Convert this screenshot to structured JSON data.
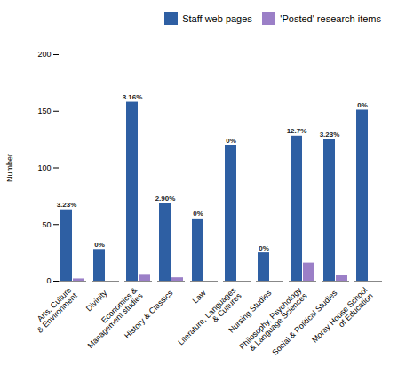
{
  "chart_data": {
    "type": "bar",
    "categories": [
      "Arts, Culture\n& Environment",
      "Divinity",
      "Economics &\nManagement studies",
      "History & Classics",
      "Law",
      "Literature, Languages\n& Cultures",
      "Nursing Studies",
      "Philosophy, Psychology\n& Language Sciences",
      "Social & Political Studies",
      "Moray House School\nof Education"
    ],
    "series": [
      {
        "name": "Staff web pages",
        "color": "#2E5FA3",
        "values": [
          63,
          28,
          158,
          69,
          55,
          120,
          25,
          128,
          125,
          151
        ],
        "labels": [
          "3.23%",
          "0%",
          "3.16%",
          "2.90%",
          "0%",
          "0%",
          "0%",
          "12.7%",
          "3.23%",
          "0%"
        ]
      },
      {
        "name": "'Posted' research items",
        "color": "#9B7FC7",
        "values": [
          2,
          0,
          6,
          3,
          0,
          0,
          0,
          16,
          5,
          0
        ]
      }
    ],
    "ylabel": "Number",
    "ylim": [
      0,
      200
    ],
    "yticks": [
      0,
      50,
      100,
      150,
      200
    ],
    "legend": "upper right"
  }
}
